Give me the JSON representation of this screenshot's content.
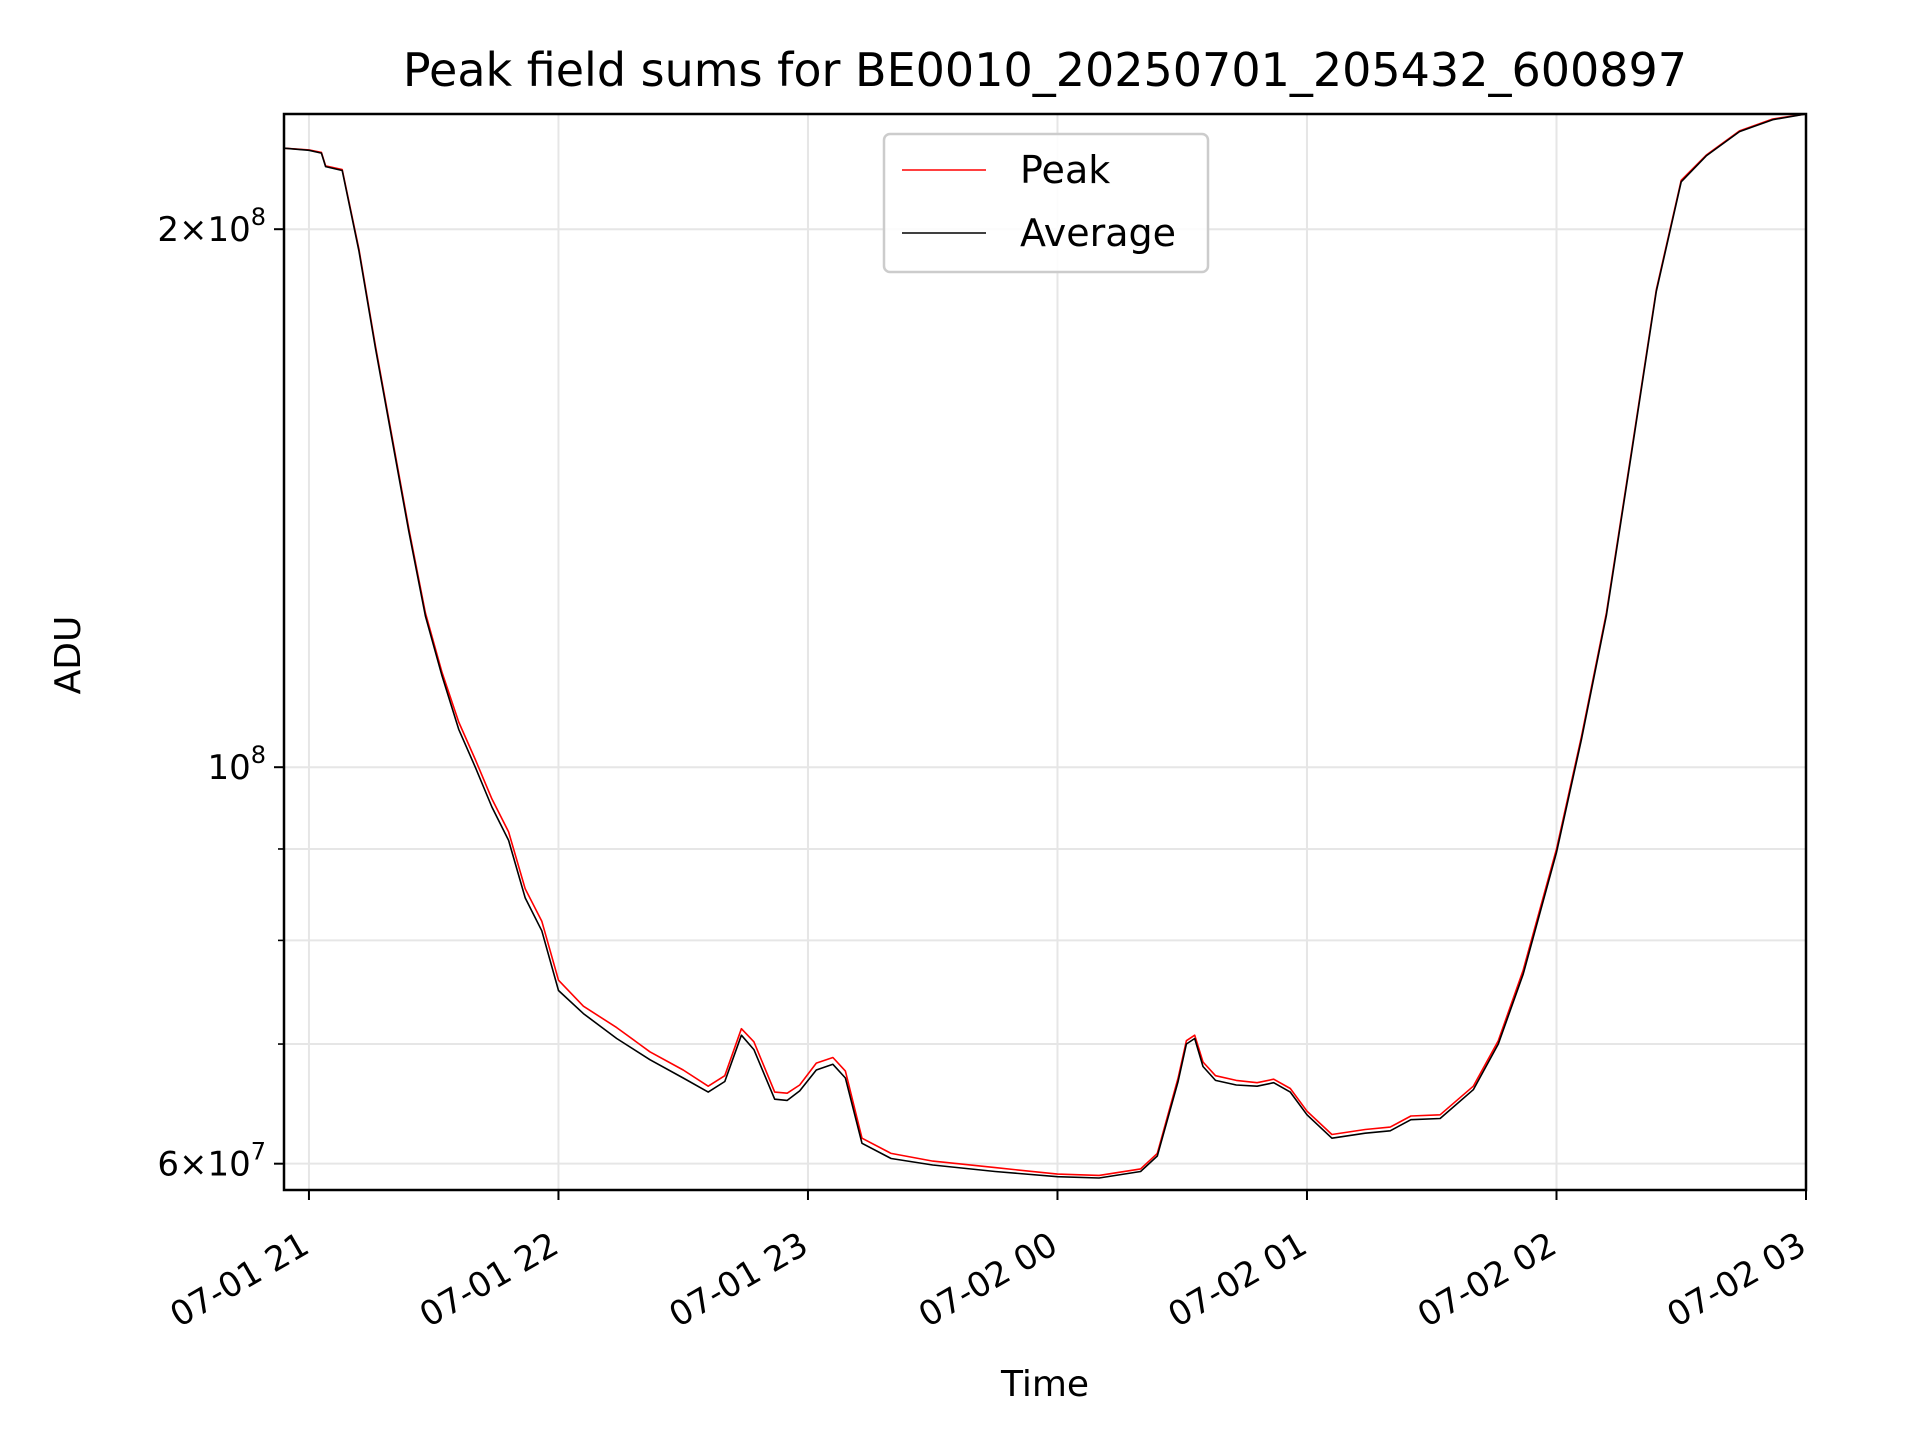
{
  "chart_data": {
    "type": "line",
    "title": "Peak field sums for BE0010_20250701_205432_600897",
    "xlabel": "Time",
    "ylabel": "ADU",
    "y_scale": "log",
    "ylim": [
      58000000,
      232000000
    ],
    "xlim": [
      "2025-07-01 20:54",
      "2025-07-02 03:00"
    ],
    "grid": true,
    "legend_position": "top-center",
    "x_ticks": [
      {
        "t": "2025-07-01 21:00",
        "label": "07-01 21"
      },
      {
        "t": "2025-07-01 22:00",
        "label": "07-01 22"
      },
      {
        "t": "2025-07-01 23:00",
        "label": "07-01 23"
      },
      {
        "t": "2025-07-02 00:00",
        "label": "07-02 00"
      },
      {
        "t": "2025-07-02 01:00",
        "label": "07-02 01"
      },
      {
        "t": "2025-07-02 02:00",
        "label": "07-02 02"
      },
      {
        "t": "2025-07-02 03:00",
        "label": "07-02 03"
      }
    ],
    "y_ticks_major": [
      {
        "value": 60000000,
        "base": "6",
        "exp": "7"
      },
      {
        "value": 100000000,
        "base": "",
        "exp": "8"
      },
      {
        "value": 200000000,
        "base": "2",
        "exp": "8"
      }
    ],
    "y_ticks_minor": [
      70000000,
      80000000,
      90000000
    ],
    "series": [
      {
        "name": "Peak",
        "color": "#ff0000",
        "points": [
          [
            "2025-07-01 20:54",
            222000000
          ],
          [
            "2025-07-01 21:00",
            221500000
          ],
          [
            "2025-07-01 21:03",
            220800000
          ],
          [
            "2025-07-01 21:04",
            217000000
          ],
          [
            "2025-07-01 21:08",
            216000000
          ],
          [
            "2025-07-01 21:12",
            195000000
          ],
          [
            "2025-07-01 21:16",
            172000000
          ],
          [
            "2025-07-01 21:20",
            153000000
          ],
          [
            "2025-07-01 21:24",
            136000000
          ],
          [
            "2025-07-01 21:28",
            122000000
          ],
          [
            "2025-07-01 21:32",
            113000000
          ],
          [
            "2025-07-01 21:36",
            106000000
          ],
          [
            "2025-07-01 21:40",
            101000000
          ],
          [
            "2025-07-01 21:44",
            96000000
          ],
          [
            "2025-07-01 21:48",
            92000000
          ],
          [
            "2025-07-01 21:52",
            85500000
          ],
          [
            "2025-07-01 21:56",
            82000000
          ],
          [
            "2025-07-01 22:00",
            76000000
          ],
          [
            "2025-07-01 22:06",
            73500000
          ],
          [
            "2025-07-01 22:14",
            71500000
          ],
          [
            "2025-07-01 22:22",
            69300000
          ],
          [
            "2025-07-01 22:30",
            67700000
          ],
          [
            "2025-07-01 22:36",
            66300000
          ],
          [
            "2025-07-01 22:40",
            67200000
          ],
          [
            "2025-07-01 22:44",
            71400000
          ],
          [
            "2025-07-01 22:47",
            70200000
          ],
          [
            "2025-07-01 22:52",
            65800000
          ],
          [
            "2025-07-01 22:55",
            65700000
          ],
          [
            "2025-07-01 22:58",
            66400000
          ],
          [
            "2025-07-01 23:02",
            68300000
          ],
          [
            "2025-07-01 23:06",
            68800000
          ],
          [
            "2025-07-01 23:09",
            67600000
          ],
          [
            "2025-07-01 23:13",
            62000000
          ],
          [
            "2025-07-01 23:20",
            60800000
          ],
          [
            "2025-07-01 23:30",
            60200000
          ],
          [
            "2025-07-01 23:45",
            59700000
          ],
          [
            "2025-07-02 00:00",
            59200000
          ],
          [
            "2025-07-02 00:10",
            59100000
          ],
          [
            "2025-07-02 00:20",
            59600000
          ],
          [
            "2025-07-02 00:24",
            60800000
          ],
          [
            "2025-07-02 00:29",
            67000000
          ],
          [
            "2025-07-02 00:31",
            70300000
          ],
          [
            "2025-07-02 00:33",
            70800000
          ],
          [
            "2025-07-02 00:35",
            68400000
          ],
          [
            "2025-07-02 00:38",
            67200000
          ],
          [
            "2025-07-02 00:43",
            66800000
          ],
          [
            "2025-07-02 00:48",
            66600000
          ],
          [
            "2025-07-02 00:52",
            66900000
          ],
          [
            "2025-07-02 00:56",
            66100000
          ],
          [
            "2025-07-02 01:00",
            64200000
          ],
          [
            "2025-07-02 01:06",
            62300000
          ],
          [
            "2025-07-02 01:14",
            62700000
          ],
          [
            "2025-07-02 01:20",
            62900000
          ],
          [
            "2025-07-02 01:25",
            63800000
          ],
          [
            "2025-07-02 01:32",
            63900000
          ],
          [
            "2025-07-02 01:40",
            66300000
          ],
          [
            "2025-07-02 01:46",
            70300000
          ],
          [
            "2025-07-02 01:52",
            77000000
          ],
          [
            "2025-07-02 02:00",
            90000000
          ],
          [
            "2025-07-02 02:06",
            104000000
          ],
          [
            "2025-07-02 02:12",
            122000000
          ],
          [
            "2025-07-02 02:18",
            150000000
          ],
          [
            "2025-07-02 02:24",
            185000000
          ],
          [
            "2025-07-02 02:30",
            213000000
          ],
          [
            "2025-07-02 02:36",
            220000000
          ],
          [
            "2025-07-02 02:44",
            227000000
          ],
          [
            "2025-07-02 02:52",
            230500000
          ],
          [
            "2025-07-02 03:00",
            232000000
          ]
        ]
      },
      {
        "name": "Average",
        "color": "#000000",
        "points": [
          [
            "2025-07-01 20:54",
            222000000
          ],
          [
            "2025-07-01 21:00",
            221400000
          ],
          [
            "2025-07-01 21:03",
            220600000
          ],
          [
            "2025-07-01 21:04",
            216800000
          ],
          [
            "2025-07-01 21:08",
            215700000
          ],
          [
            "2025-07-01 21:12",
            194500000
          ],
          [
            "2025-07-01 21:16",
            171500000
          ],
          [
            "2025-07-01 21:20",
            152500000
          ],
          [
            "2025-07-01 21:24",
            135500000
          ],
          [
            "2025-07-01 21:28",
            121500000
          ],
          [
            "2025-07-01 21:32",
            112500000
          ],
          [
            "2025-07-01 21:36",
            105000000
          ],
          [
            "2025-07-01 21:40",
            100000000
          ],
          [
            "2025-07-01 21:44",
            95000000
          ],
          [
            "2025-07-01 21:48",
            91000000
          ],
          [
            "2025-07-01 21:52",
            84500000
          ],
          [
            "2025-07-01 21:56",
            81000000
          ],
          [
            "2025-07-01 22:00",
            75000000
          ],
          [
            "2025-07-01 22:06",
            72800000
          ],
          [
            "2025-07-01 22:14",
            70500000
          ],
          [
            "2025-07-01 22:22",
            68600000
          ],
          [
            "2025-07-01 22:30",
            67000000
          ],
          [
            "2025-07-01 22:36",
            65800000
          ],
          [
            "2025-07-01 22:40",
            66700000
          ],
          [
            "2025-07-01 22:44",
            70800000
          ],
          [
            "2025-07-01 22:47",
            69500000
          ],
          [
            "2025-07-01 22:52",
            65200000
          ],
          [
            "2025-07-01 22:55",
            65100000
          ],
          [
            "2025-07-01 22:58",
            65900000
          ],
          [
            "2025-07-01 23:02",
            67700000
          ],
          [
            "2025-07-01 23:06",
            68200000
          ],
          [
            "2025-07-01 23:09",
            67000000
          ],
          [
            "2025-07-01 23:13",
            61600000
          ],
          [
            "2025-07-01 23:20",
            60400000
          ],
          [
            "2025-07-01 23:30",
            59900000
          ],
          [
            "2025-07-01 23:45",
            59400000
          ],
          [
            "2025-07-02 00:00",
            59000000
          ],
          [
            "2025-07-02 00:10",
            58900000
          ],
          [
            "2025-07-02 00:20",
            59400000
          ],
          [
            "2025-07-02 00:24",
            60600000
          ],
          [
            "2025-07-02 00:29",
            66700000
          ],
          [
            "2025-07-02 00:31",
            70000000
          ],
          [
            "2025-07-02 00:33",
            70500000
          ],
          [
            "2025-07-02 00:35",
            68000000
          ],
          [
            "2025-07-02 00:38",
            66800000
          ],
          [
            "2025-07-02 00:43",
            66400000
          ],
          [
            "2025-07-02 00:48",
            66300000
          ],
          [
            "2025-07-02 00:52",
            66600000
          ],
          [
            "2025-07-02 00:56",
            65800000
          ],
          [
            "2025-07-02 01:00",
            63900000
          ],
          [
            "2025-07-02 01:06",
            62000000
          ],
          [
            "2025-07-02 01:14",
            62400000
          ],
          [
            "2025-07-02 01:20",
            62600000
          ],
          [
            "2025-07-02 01:25",
            63500000
          ],
          [
            "2025-07-02 01:32",
            63600000
          ],
          [
            "2025-07-02 01:40",
            66000000
          ],
          [
            "2025-07-02 01:46",
            70000000
          ],
          [
            "2025-07-02 01:52",
            76600000
          ],
          [
            "2025-07-02 02:00",
            89600000
          ],
          [
            "2025-07-02 02:06",
            103600000
          ],
          [
            "2025-07-02 02:12",
            121600000
          ],
          [
            "2025-07-02 02:18",
            149600000
          ],
          [
            "2025-07-02 02:24",
            184600000
          ],
          [
            "2025-07-02 02:30",
            212600000
          ],
          [
            "2025-07-02 02:36",
            219800000
          ],
          [
            "2025-07-02 02:44",
            226800000
          ],
          [
            "2025-07-02 02:52",
            230300000
          ],
          [
            "2025-07-02 03:00",
            232000000
          ]
        ]
      }
    ]
  }
}
